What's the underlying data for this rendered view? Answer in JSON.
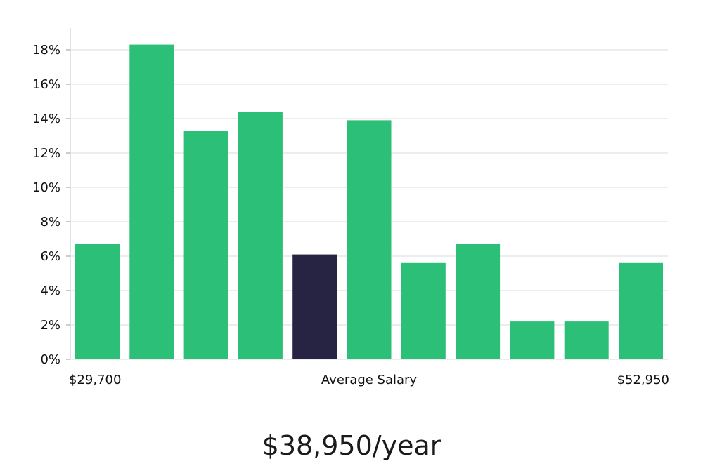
{
  "chart_data": {
    "type": "bar",
    "title": "",
    "xlabel": "Average Salary",
    "ylabel": "",
    "x_range_labels": {
      "min": "$29,700",
      "max": "$52,950"
    },
    "y_ticks": [
      "0%",
      "2%",
      "4%",
      "6%",
      "8%",
      "10%",
      "12%",
      "14%",
      "16%",
      "18%"
    ],
    "ylim": [
      0,
      19.2
    ],
    "values": [
      6.7,
      18.3,
      13.3,
      14.4,
      6.1,
      13.9,
      5.6,
      6.7,
      2.2,
      2.2,
      5.6
    ],
    "highlight_index": 4,
    "grid": true
  },
  "salary_display": "$38,950/year",
  "colors": {
    "bar": "#2bbf78",
    "bar_highlight": "#272443",
    "grid": "#e2e2e2",
    "axis": "#cfcfcf"
  }
}
